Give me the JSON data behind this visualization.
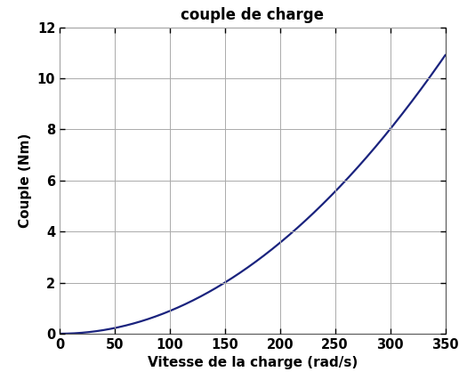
{
  "title": "couple de charge",
  "xlabel": "Vitesse de la charge (rad/s)",
  "ylabel": "Couple (Nm)",
  "xlim": [
    0,
    350
  ],
  "ylim": [
    0,
    12
  ],
  "xticks": [
    0,
    50,
    100,
    150,
    200,
    250,
    300,
    350
  ],
  "yticks": [
    0,
    2,
    4,
    6,
    8,
    10,
    12
  ],
  "x_max": 350,
  "coeff": 8.9e-05,
  "exponent": 2.0,
  "line_color": "#1a237e",
  "line_width": 1.6,
  "grid_color": "#aaaaaa",
  "background_color": "#ffffff",
  "title_fontsize": 12,
  "label_fontsize": 11,
  "tick_fontsize": 10.5
}
